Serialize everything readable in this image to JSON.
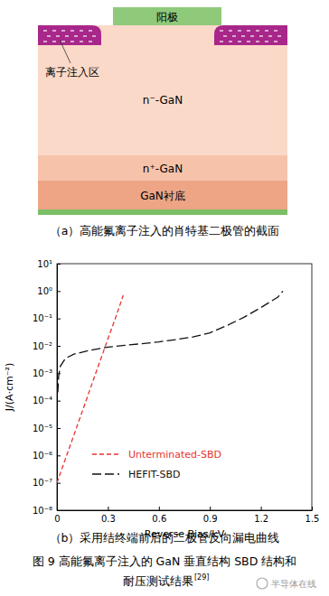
{
  "diagram": {
    "anode": "阳极",
    "implant_label": "离子注入区",
    "layers": [
      "n⁻-GaN",
      "n⁺-GaN",
      "GaN衬底"
    ],
    "caption": "（a）高能氟离子注入的肖特基二极管的截面"
  },
  "chart_data": {
    "type": "line",
    "caption": "（b）采用结终端前后的二极管反向漏电曲线",
    "x_label": "Reverse Bias/kV",
    "y_label": "J/(A·cm⁻²)",
    "log": "y",
    "grid": false,
    "legend": "lower center",
    "xlim": [
      0,
      1.5
    ],
    "xticks": [
      0,
      0.3,
      0.6,
      0.9,
      1.2,
      1.5
    ],
    "ylim": [
      1e-08,
      10
    ],
    "yticks": [
      {
        "value": 1e-08,
        "label": "10⁻⁸"
      },
      {
        "value": 1e-07,
        "label": "10⁻⁷"
      },
      {
        "value": 1e-06,
        "label": "10⁻⁶"
      },
      {
        "value": 1e-05,
        "label": "10⁻⁵"
      },
      {
        "value": 0.0001,
        "label": "10⁻⁴"
      },
      {
        "value": 0.001,
        "label": "10⁻³"
      },
      {
        "value": 0.01,
        "label": "10⁻²"
      },
      {
        "value": 0.1,
        "label": "10⁻¹"
      },
      {
        "value": 1,
        "label": "10⁰"
      },
      {
        "value": 10,
        "label": "10¹"
      }
    ],
    "series": [
      {
        "name": "Unterminated-SBD",
        "color": "#e8322e",
        "line_style": "dashed",
        "x": [
          0,
          0.05,
          0.1,
          0.15,
          0.2,
          0.25,
          0.3,
          0.35,
          0.39
        ],
        "values": [
          1e-07,
          7.5e-07,
          5.6e-06,
          4.2e-05,
          0.00032,
          0.0024,
          0.018,
          0.13,
          0.7
        ]
      },
      {
        "name": "HEFIT-SBD",
        "color": "#111111",
        "line_style": "longdash",
        "x": [
          0.005,
          0.01,
          0.02,
          0.05,
          0.1,
          0.2,
          0.3,
          0.4,
          0.5,
          0.6,
          0.7,
          0.8,
          0.9,
          1.0,
          1.1,
          1.2,
          1.3,
          1.33
        ],
        "values": [
          0.0002,
          0.0008,
          0.0018,
          0.0035,
          0.005,
          0.007,
          0.009,
          0.0105,
          0.012,
          0.014,
          0.017,
          0.021,
          0.03,
          0.055,
          0.11,
          0.25,
          0.6,
          1
        ]
      }
    ]
  },
  "figure": {
    "caption_lines": [
      "图 9  高能氟离子注入的 GaN 垂直结构 SBD 结构和",
      "耐压测试结果"
    ],
    "reference": "[29]",
    "watermark": "半导体在线"
  }
}
